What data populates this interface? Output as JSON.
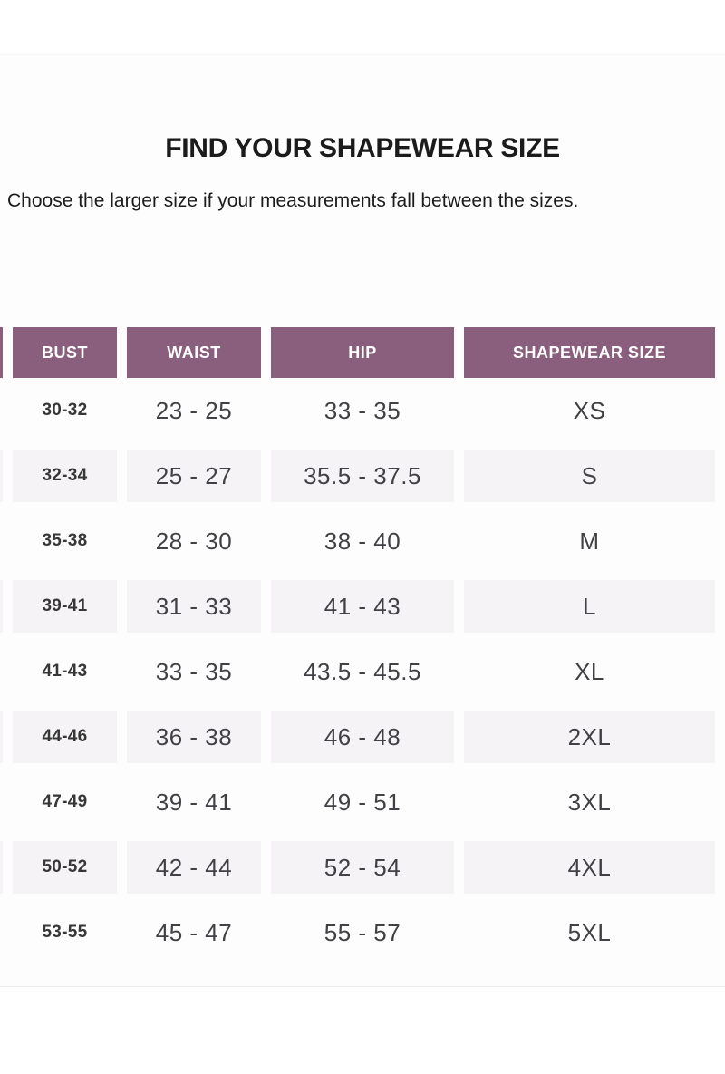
{
  "page": {
    "title": "FIND YOUR SHAPEWEAR SIZE",
    "subtitle": "Choose the larger size if your measurements fall between the sizes."
  },
  "table": {
    "columns": [
      "BUST",
      "WAIST",
      "HIP",
      "SHAPEWEAR SIZE"
    ],
    "rows": [
      {
        "bust": "30-32",
        "waist": "23 - 25",
        "hip": "33 - 35",
        "size": "XS"
      },
      {
        "bust": "32-34",
        "waist": "25 - 27",
        "hip": "35.5 - 37.5",
        "size": "S"
      },
      {
        "bust": "35-38",
        "waist": "28 - 30",
        "hip": "38 - 40",
        "size": "M"
      },
      {
        "bust": "39-41",
        "waist": "31 - 33",
        "hip": "41 - 43",
        "size": "L"
      },
      {
        "bust": "41-43",
        "waist": "33 - 35",
        "hip": "43.5 - 45.5",
        "size": "XL"
      },
      {
        "bust": "44-46",
        "waist": "36 - 38",
        "hip": "46 - 48",
        "size": "2XL"
      },
      {
        "bust": "47-49",
        "waist": "39 - 41",
        "hip": "49 - 51",
        "size": "3XL"
      },
      {
        "bust": "50-52",
        "waist": "42 - 44",
        "hip": "52 - 54",
        "size": "4XL"
      },
      {
        "bust": "53-55",
        "waist": "45 - 47",
        "hip": "55 - 57",
        "size": "5XL"
      }
    ]
  },
  "colors": {
    "header_bg": "#8a5e7d",
    "header_text": "#ffffff",
    "shaded_row_bg": "#f5f3f5",
    "body_text": "#414145",
    "bust_text": "#373737",
    "heading_text": "#1b1b1b"
  }
}
